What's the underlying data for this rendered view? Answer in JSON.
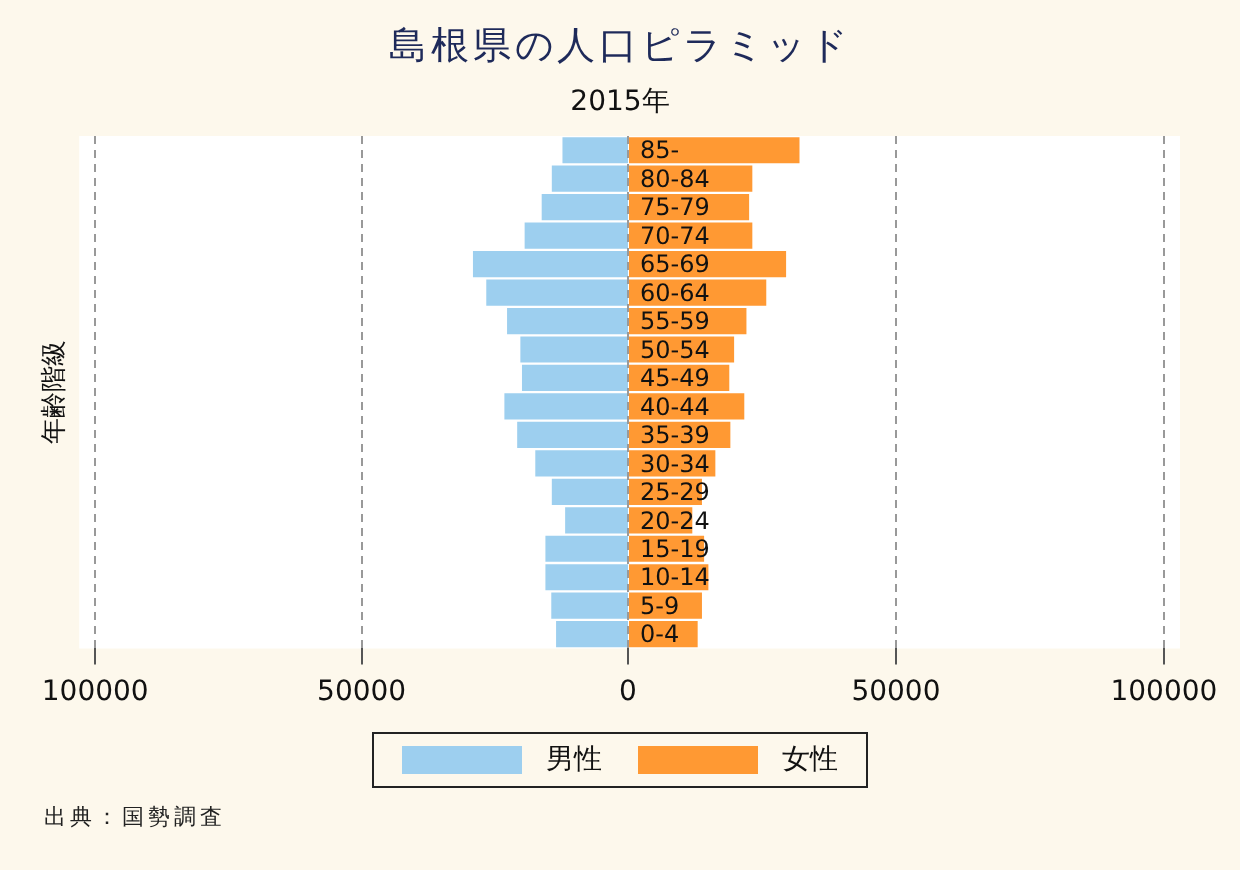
{
  "chart_data": [
    {
      "type": "bar",
      "orientation": "horizontal",
      "title": "島根県の人口ピラミッド",
      "subtitle": "2015年",
      "ylabel": "年齢階級",
      "categories": [
        null,
        null,
        null,
        null,
        null,
        null,
        null,
        null,
        null,
        null,
        null,
        null,
        null,
        null,
        null,
        null,
        null,
        null
      ],
      "series": [
        {
          "name": "男性",
          "color": "#9dcfef",
          "values": [
            12300,
            14300,
            16200,
            19400,
            29100,
            26600,
            22700,
            20200,
            19900,
            23200,
            20800,
            17400,
            14300,
            11800,
            15500,
            15500,
            14400,
            13500
          ]
        }
      ],
      "xlim": [
        103000,
        0
      ],
      "xticks": [
        100000,
        50000
      ],
      "grid": "x",
      "legend": "bottom",
      "tick_labels": "x",
      "annotations": [
        "出典：国勢調査"
      ]
    },
    {
      "type": "bar",
      "orientation": "horizontal",
      "categories": [
        "85-",
        "80-84",
        "75-79",
        "70-74",
        "65-69",
        "60-64",
        "55-59",
        "50-54",
        "45-49",
        "40-44",
        "35-39",
        "30-34",
        "25-29",
        "20-24",
        "15-19",
        "10-14",
        "5-9",
        "0-4"
      ],
      "series": [
        {
          "name": "女性",
          "color": "#ff9933",
          "values": [
            32000,
            23200,
            22600,
            23200,
            29500,
            25800,
            22100,
            19800,
            18900,
            21700,
            19100,
            16300,
            13800,
            12000,
            14200,
            15000,
            13800,
            13000
          ]
        }
      ],
      "xlim": [
        0,
        103000
      ],
      "xticks": [
        0,
        50000,
        100000
      ],
      "grid": "x",
      "legend": "bottom"
    }
  ]
}
